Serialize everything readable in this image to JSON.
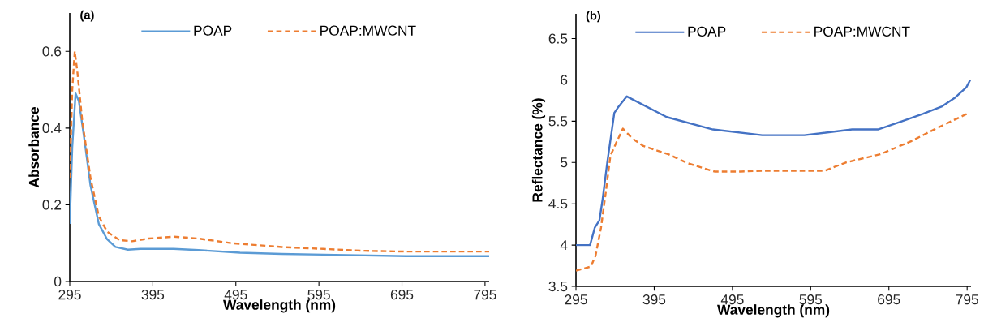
{
  "chart_data": [
    {
      "type": "line",
      "title": "(a)",
      "xlabel": "Wavelength (nm)",
      "ylabel": "Absorbance",
      "xlim": [
        295,
        800
      ],
      "ylim": [
        0,
        0.7
      ],
      "xticks": [
        295,
        395,
        495,
        595,
        695,
        795
      ],
      "yticks": [
        0,
        0.2,
        0.4,
        0.6
      ],
      "legend": "top",
      "series": [
        {
          "name": "POAP",
          "color": "#5b9bd5",
          "line_style": "solid",
          "x": [
            295,
            298,
            302,
            306,
            312,
            320,
            330,
            340,
            350,
            365,
            380,
            420,
            450,
            500,
            550,
            600,
            700,
            800
          ],
          "values": [
            0.15,
            0.35,
            0.49,
            0.47,
            0.38,
            0.25,
            0.15,
            0.11,
            0.09,
            0.083,
            0.085,
            0.085,
            0.082,
            0.075,
            0.072,
            0.07,
            0.066,
            0.066
          ]
        },
        {
          "name": "POAP:MWCNT",
          "color": "#ed7d31",
          "line_style": "dashed",
          "x": [
            295,
            298,
            301,
            304,
            310,
            320,
            330,
            340,
            355,
            370,
            390,
            420,
            450,
            490,
            550,
            600,
            650,
            700,
            800
          ],
          "values": [
            0.27,
            0.5,
            0.6,
            0.55,
            0.42,
            0.27,
            0.17,
            0.13,
            0.108,
            0.105,
            0.112,
            0.117,
            0.112,
            0.1,
            0.09,
            0.085,
            0.08,
            0.078,
            0.078
          ]
        }
      ]
    },
    {
      "type": "line",
      "title": "(b)",
      "xlabel": "Wavelength (nm)",
      "ylabel": "Reflectance (%)",
      "xlim": [
        295,
        800
      ],
      "ylim": [
        3.5,
        6.8
      ],
      "xticks": [
        295,
        395,
        495,
        595,
        695,
        795
      ],
      "yticks": [
        3.5,
        4,
        4.5,
        5,
        5.5,
        6,
        6.5
      ],
      "legend": "top",
      "series": [
        {
          "name": "POAP",
          "color": "#4472c4",
          "line_style": "solid",
          "x": [
            295,
            313,
            319,
            325,
            329,
            335,
            344,
            349,
            360,
            411,
            470,
            533,
            587,
            648,
            681,
            712,
            739,
            763,
            779,
            794,
            799
          ],
          "values": [
            4.0,
            4.0,
            4.21,
            4.3,
            4.55,
            5.0,
            5.6,
            5.67,
            5.8,
            5.55,
            5.4,
            5.33,
            5.33,
            5.4,
            5.4,
            5.5,
            5.59,
            5.68,
            5.78,
            5.91,
            6.0
          ]
        },
        {
          "name": "POAP:MWCNT",
          "color": "#ed7d31",
          "line_style": "dashed",
          "x": [
            295,
            314,
            320,
            327,
            333,
            339,
            347,
            355,
            367,
            381,
            413,
            438,
            472,
            506,
            533,
            613,
            640,
            684,
            724,
            755,
            795
          ],
          "values": [
            3.69,
            3.74,
            3.87,
            4.21,
            4.63,
            5.08,
            5.25,
            5.41,
            5.29,
            5.2,
            5.1,
            4.99,
            4.89,
            4.89,
            4.9,
            4.9,
            5.0,
            5.1,
            5.26,
            5.41,
            5.59
          ]
        }
      ]
    }
  ]
}
